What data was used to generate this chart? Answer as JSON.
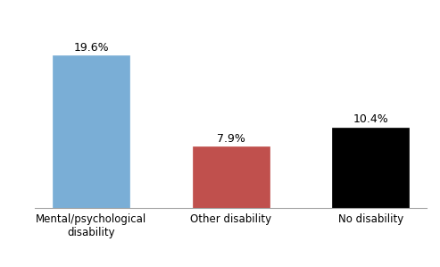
{
  "categories": [
    "Mental/psychological\ndisability",
    "Other disability",
    "No disability"
  ],
  "values": [
    19.6,
    7.9,
    10.4
  ],
  "labels": [
    "19.6%",
    "7.9%",
    "10.4%"
  ],
  "bar_colors": [
    "#7aaed6",
    "#c0504d",
    "#000000"
  ],
  "bar_edge_colors": [
    "#7aaed6",
    "#c0504d",
    "#000000"
  ],
  "ylim": [
    0,
    24
  ],
  "background_color": "#ffffff",
  "plot_background": "#ffffff",
  "label_fontsize": 9,
  "tick_fontsize": 8.5,
  "bar_width": 0.55,
  "border_color": "#b0b0b0"
}
